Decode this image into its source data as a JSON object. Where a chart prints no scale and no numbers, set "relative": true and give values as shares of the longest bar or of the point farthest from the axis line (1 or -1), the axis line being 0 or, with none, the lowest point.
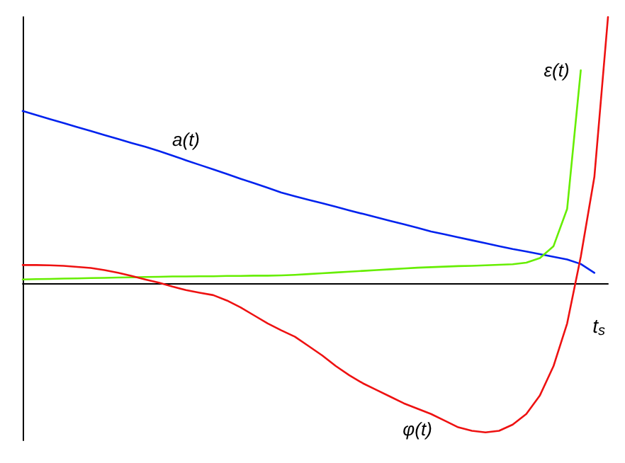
{
  "chart_data": {
    "type": "line",
    "relative": true,
    "legend": false,
    "grid": false,
    "marker": "none",
    "line_style": "solid",
    "categories": [
      null,
      null,
      null,
      null,
      null,
      null,
      null,
      null,
      null,
      null,
      null,
      null,
      null,
      null,
      null,
      null,
      null,
      null,
      null,
      null,
      null,
      null,
      null,
      null,
      null,
      null,
      null,
      null,
      null,
      null,
      null,
      null,
      null,
      null,
      null,
      null,
      null,
      null,
      null,
      null,
      null,
      null,
      null,
      null
    ],
    "annotations": [
      "t$_{s}$"
    ],
    "series": [
      {
        "name": "a(t)",
        "color": "#0022ee",
        "values": [
          0.647,
          0.632,
          0.617,
          0.602,
          0.587,
          0.572,
          0.557,
          0.542,
          0.527,
          0.513,
          0.497,
          0.48,
          0.462,
          0.445,
          0.428,
          0.411,
          0.393,
          0.376,
          0.359,
          0.341,
          0.327,
          0.314,
          0.301,
          0.288,
          0.274,
          0.261,
          0.248,
          0.235,
          0.222,
          0.209,
          0.195,
          0.184,
          0.173,
          0.162,
          0.151,
          0.14,
          0.129,
          0.12,
          0.11,
          0.1,
          0.09,
          0.073,
          0.04,
          null
        ]
      },
      {
        "name": "ε(t)",
        "color": "#66ee00",
        "values": [
          0.015,
          0.016,
          0.017,
          0.018,
          0.019,
          0.02,
          0.021,
          0.022,
          0.023,
          0.024,
          0.025,
          0.026,
          0.026,
          0.027,
          0.027,
          0.028,
          0.028,
          0.029,
          0.029,
          0.03,
          0.032,
          0.035,
          0.038,
          0.041,
          0.044,
          0.047,
          0.05,
          0.053,
          0.056,
          0.059,
          0.061,
          0.063,
          0.065,
          0.066,
          0.068,
          0.07,
          0.072,
          0.078,
          0.095,
          0.14,
          0.28,
          0.8,
          null,
          null
        ]
      },
      {
        "name": "φ(t)",
        "color": "#ee1111",
        "values": [
          0.069,
          0.069,
          0.068,
          0.066,
          0.062,
          0.058,
          0.05,
          0.04,
          0.028,
          0.015,
          0.003,
          -0.012,
          -0.025,
          -0.035,
          -0.044,
          -0.064,
          -0.09,
          -0.12,
          -0.15,
          -0.176,
          -0.2,
          -0.235,
          -0.27,
          -0.31,
          -0.345,
          -0.375,
          -0.4,
          -0.425,
          -0.45,
          -0.47,
          -0.49,
          -0.515,
          -0.54,
          -0.553,
          -0.559,
          -0.553,
          -0.53,
          -0.49,
          -0.42,
          -0.31,
          -0.15,
          0.1,
          0.4,
          1
        ]
      }
    ]
  }
}
